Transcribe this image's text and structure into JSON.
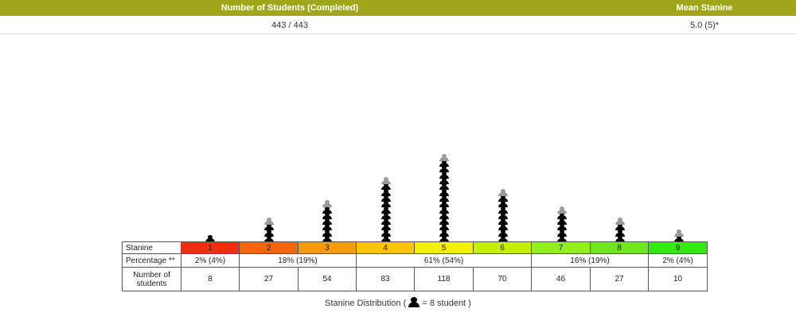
{
  "summary": {
    "header_left": "Number of Students (Completed)",
    "header_right": "Mean Stanine",
    "value_left": "443 / 443",
    "value_right": "5.0 (5)*"
  },
  "colors": {
    "header_bg": "#9fa61a",
    "stanine": [
      "#f02e10",
      "#f4650c",
      "#f99a0a",
      "#fbc406",
      "#f6ef00",
      "#c4f000",
      "#93ee1c",
      "#6ee71c",
      "#34e90f"
    ]
  },
  "table": {
    "row_labels": {
      "stanine": "Stanine",
      "percentage": "Percentage **",
      "students": "Number of\nstudents"
    },
    "stanines": [
      "1",
      "2",
      "3",
      "4",
      "5",
      "6",
      "7",
      "8",
      "9"
    ],
    "percentages": [
      "2% (4%)",
      "18% (19%)",
      "61% (54%)",
      "16% (19%)",
      "2% (4%)"
    ],
    "counts": [
      "8",
      "27",
      "54",
      "83",
      "118",
      "70",
      "46",
      "27",
      "10"
    ]
  },
  "caption": {
    "before": "Stanine Distribution (",
    "after": "= 8 student )"
  },
  "chart_data": {
    "type": "pictogram",
    "unit": 8,
    "categories": [
      "1",
      "2",
      "3",
      "4",
      "5",
      "6",
      "7",
      "8",
      "9"
    ],
    "values": [
      8,
      27,
      54,
      83,
      118,
      70,
      46,
      27,
      10
    ],
    "title": "Stanine Distribution"
  }
}
